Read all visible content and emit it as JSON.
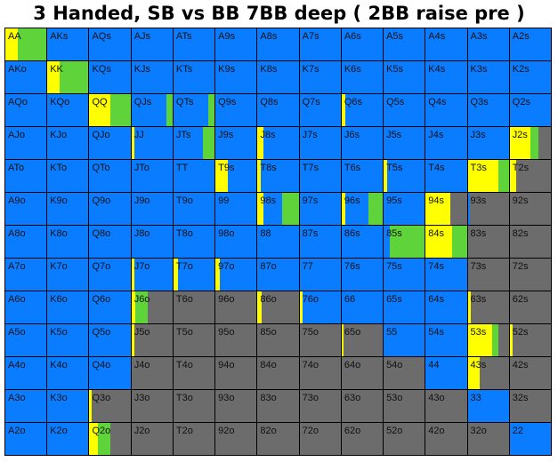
{
  "title": "3 Handed, SB vs BB 7BB deep ( 2BB raise pre )",
  "colors": {
    "blue": "#0a7cff",
    "grey": "#6c6c6c",
    "yellow": "#ffff00",
    "green": "#5fd43a"
  },
  "cells": [
    [
      {
        "h": "AA",
        "y": 0.3,
        "g": 0.7
      },
      {
        "h": "AKs"
      },
      {
        "h": "AQs"
      },
      {
        "h": "AJs"
      },
      {
        "h": "ATs"
      },
      {
        "h": "A9s"
      },
      {
        "h": "A8s"
      },
      {
        "h": "A7s"
      },
      {
        "h": "A6s"
      },
      {
        "h": "A5s"
      },
      {
        "h": "A4s"
      },
      {
        "h": "A3s"
      },
      {
        "h": "A2s"
      }
    ],
    [
      {
        "h": "AKo"
      },
      {
        "h": "KK",
        "y": 0.3,
        "g": 0.7
      },
      {
        "h": "KQs"
      },
      {
        "h": "KJs"
      },
      {
        "h": "KTs"
      },
      {
        "h": "K9s"
      },
      {
        "h": "K8s"
      },
      {
        "h": "K7s"
      },
      {
        "h": "K6s"
      },
      {
        "h": "K5s"
      },
      {
        "h": "K4s"
      },
      {
        "h": "K3s"
      },
      {
        "h": "K2s"
      }
    ],
    [
      {
        "h": "AQo"
      },
      {
        "h": "KQo"
      },
      {
        "h": "QQ",
        "y": 0.5,
        "g": 0.5
      },
      {
        "h": "QJs",
        "b": 0.85,
        "g": 0.15
      },
      {
        "h": "QTs",
        "b": 0.85,
        "g": 0.15
      },
      {
        "h": "Q9s"
      },
      {
        "h": "Q8s"
      },
      {
        "h": "Q7s"
      },
      {
        "h": "Q6s",
        "y": 0.08,
        "b": 0.92
      },
      {
        "h": "Q5s"
      },
      {
        "h": "Q4s"
      },
      {
        "h": "Q3s"
      },
      {
        "h": "Q2s"
      }
    ],
    [
      {
        "h": "AJo"
      },
      {
        "h": "KJo"
      },
      {
        "h": "QJo"
      },
      {
        "h": "JJ",
        "y": 0.08,
        "b": 0.92
      },
      {
        "h": "JTs",
        "b": 0.72,
        "g": 0.28
      },
      {
        "h": "J9s"
      },
      {
        "h": "J8s",
        "y": 0.15,
        "b": 0.85
      },
      {
        "h": "J7s"
      },
      {
        "h": "J6s"
      },
      {
        "h": "J5s"
      },
      {
        "h": "J4s"
      },
      {
        "h": "J3s"
      },
      {
        "h": "J2s",
        "y": 0.5,
        "g": 0.2,
        "k": 0.3
      }
    ],
    [
      {
        "h": "ATo"
      },
      {
        "h": "KTo"
      },
      {
        "h": "QTo"
      },
      {
        "h": "JTo"
      },
      {
        "h": "TT"
      },
      {
        "h": "T9s",
        "y": 0.3,
        "b": 0.7
      },
      {
        "h": "T8s",
        "y": 0.08,
        "b": 0.92
      },
      {
        "h": "T7s"
      },
      {
        "h": "T6s"
      },
      {
        "h": "T5s",
        "y": 0.08,
        "b": 0.92
      },
      {
        "h": "T4s"
      },
      {
        "h": "T3s",
        "y": 0.75,
        "g": 0.25
      },
      {
        "h": "T2s",
        "y": 0.15,
        "k": 0.85
      }
    ],
    [
      {
        "h": "A9o"
      },
      {
        "h": "K9o"
      },
      {
        "h": "Q9o"
      },
      {
        "h": "J9o"
      },
      {
        "h": "T9o"
      },
      {
        "h": "99"
      },
      {
        "h": "98s",
        "y": 0.15,
        "b": 0.45,
        "g": 0.4
      },
      {
        "h": "97s"
      },
      {
        "h": "96s",
        "y": 0.1,
        "b": 0.55,
        "g": 0.35
      },
      {
        "h": "95s"
      },
      {
        "h": "94s",
        "y": 0.6,
        "k": 0.4
      },
      {
        "h": "93s",
        "b": 0.05,
        "k": 0.95
      },
      {
        "h": "92s",
        "k": 1
      }
    ],
    [
      {
        "h": "A8o"
      },
      {
        "h": "K8o"
      },
      {
        "h": "Q8o"
      },
      {
        "h": "J8o"
      },
      {
        "h": "T8o"
      },
      {
        "h": "98o"
      },
      {
        "h": "88"
      },
      {
        "h": "87s"
      },
      {
        "h": "86s"
      },
      {
        "h": "85s",
        "b": 0.15,
        "g": 0.85
      },
      {
        "h": "84s",
        "y": 0.65,
        "g": 0.35
      },
      {
        "h": "83s",
        "k": 1
      },
      {
        "h": "82s",
        "k": 1
      }
    ],
    [
      {
        "h": "A7o"
      },
      {
        "h": "K7o"
      },
      {
        "h": "Q7o"
      },
      {
        "h": "J7o",
        "y": 0.08,
        "b": 0.92
      },
      {
        "h": "T7o",
        "y": 0.1,
        "b": 0.9
      },
      {
        "h": "97o",
        "y": 0.1,
        "b": 0.9
      },
      {
        "h": "87o"
      },
      {
        "h": "77"
      },
      {
        "h": "76s"
      },
      {
        "h": "75s"
      },
      {
        "h": "74s"
      },
      {
        "h": "73s",
        "k": 1
      },
      {
        "h": "72s",
        "k": 1
      }
    ],
    [
      {
        "h": "A6o"
      },
      {
        "h": "K6o"
      },
      {
        "h": "Q6o"
      },
      {
        "h": "J6o",
        "y": 0.1,
        "g": 0.3,
        "k": 0.6
      },
      {
        "h": "T6o",
        "k": 1
      },
      {
        "h": "96o",
        "k": 1
      },
      {
        "h": "86o",
        "y": 0.1,
        "k": 0.9
      },
      {
        "h": "76o",
        "y": 0.08,
        "b": 0.92
      },
      {
        "h": "66"
      },
      {
        "h": "65s"
      },
      {
        "h": "64s"
      },
      {
        "h": "63s",
        "y": 0.08,
        "k": 0.92
      },
      {
        "h": "62s",
        "k": 1
      }
    ],
    [
      {
        "h": "A5o"
      },
      {
        "h": "K5o"
      },
      {
        "h": "Q5o"
      },
      {
        "h": "J5o",
        "y": 0.08,
        "k": 0.92
      },
      {
        "h": "T5o",
        "k": 1
      },
      {
        "h": "95o",
        "k": 1
      },
      {
        "h": "85o",
        "k": 1
      },
      {
        "h": "75o",
        "k": 1
      },
      {
        "h": "65o",
        "y": 0.05,
        "k": 0.95
      },
      {
        "h": "55"
      },
      {
        "h": "54s"
      },
      {
        "h": "53s",
        "y": 0.6,
        "g": 0.15,
        "k": 0.25
      },
      {
        "h": "52s",
        "y": 0.08,
        "k": 0.92
      }
    ],
    [
      {
        "h": "A4o"
      },
      {
        "h": "K4o"
      },
      {
        "h": "Q4o"
      },
      {
        "h": "J4o",
        "k": 1
      },
      {
        "h": "T4o",
        "k": 1
      },
      {
        "h": "94o",
        "k": 1
      },
      {
        "h": "84o",
        "k": 1
      },
      {
        "h": "74o",
        "k": 1
      },
      {
        "h": "64o",
        "k": 1
      },
      {
        "h": "54o",
        "k": 1
      },
      {
        "h": "44"
      },
      {
        "h": "43s",
        "y": 0.3,
        "k": 0.7
      },
      {
        "h": "42s",
        "k": 1
      }
    ],
    [
      {
        "h": "A3o"
      },
      {
        "h": "K3o"
      },
      {
        "h": "Q3o",
        "y": 0.05,
        "k": 0.95
      },
      {
        "h": "J3o",
        "k": 1
      },
      {
        "h": "T3o",
        "k": 1
      },
      {
        "h": "93o",
        "k": 1
      },
      {
        "h": "83o",
        "k": 1
      },
      {
        "h": "73o",
        "k": 1
      },
      {
        "h": "63o",
        "k": 1
      },
      {
        "h": "53o",
        "k": 1
      },
      {
        "h": "43o",
        "k": 1
      },
      {
        "h": "33"
      },
      {
        "h": "32s",
        "k": 1
      }
    ],
    [
      {
        "h": "A2o"
      },
      {
        "h": "K2o"
      },
      {
        "h": "Q2o",
        "y": 0.2,
        "g": 0.3,
        "k": 0.5
      },
      {
        "h": "J2o",
        "k": 1
      },
      {
        "h": "T2o",
        "k": 1
      },
      {
        "h": "92o",
        "k": 1
      },
      {
        "h": "82o",
        "k": 1
      },
      {
        "h": "72o",
        "k": 1
      },
      {
        "h": "62o",
        "k": 1
      },
      {
        "h": "52o",
        "k": 1
      },
      {
        "h": "42o",
        "k": 1
      },
      {
        "h": "32o",
        "k": 1
      },
      {
        "h": "22"
      }
    ]
  ]
}
